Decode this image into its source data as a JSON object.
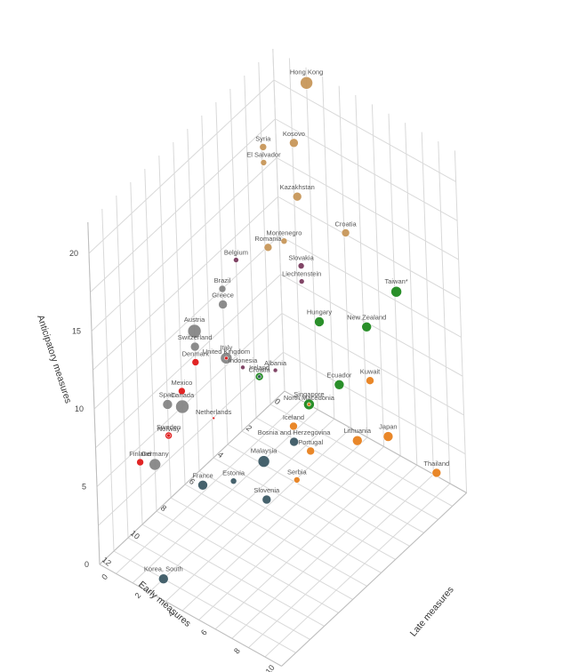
{
  "chart_data": {
    "type": "scatter",
    "title": "",
    "x_axis": {
      "label": "Late measures",
      "ticks": [
        "0",
        "2",
        "4",
        "6",
        "8",
        "10"
      ],
      "range": [
        0,
        11
      ]
    },
    "y_axis": {
      "label": "Early measures",
      "ticks": [
        "0",
        "2",
        "4",
        "6",
        "8",
        "10",
        "12"
      ],
      "range": [
        0,
        13
      ]
    },
    "z_axis": {
      "label": "Anticipatory measures",
      "ticks": [
        "0",
        "5",
        "10",
        "15",
        "20"
      ],
      "range": [
        0,
        22
      ]
    },
    "grid": true,
    "legend": "none",
    "colors": {
      "tan": "#c8975a",
      "purple": "#7b3c5e",
      "green": "#1f8a1f",
      "gray": "#868686",
      "red": "#e01a1a",
      "teal": "#3d5a66",
      "orange": "#e8811e"
    },
    "points": [
      {
        "name": "Hong Kong",
        "x": 2,
        "y": 0,
        "z": 21,
        "size": 14,
        "color": "tan"
      },
      {
        "name": "Kosovo",
        "x": 2,
        "y": 1,
        "z": 18,
        "size": 10,
        "color": "tan"
      },
      {
        "name": "Syria",
        "x": 1,
        "y": 2,
        "z": 18,
        "size": 8,
        "color": "tan"
      },
      {
        "name": "El Salvador",
        "x": 1,
        "y": 2,
        "z": 17,
        "size": 7,
        "color": "tan"
      },
      {
        "name": "Kazakhstan",
        "x": 3,
        "y": 2,
        "z": 16,
        "size": 10,
        "color": "tan"
      },
      {
        "name": "Montenegro",
        "x": 3,
        "y": 3,
        "z": 14,
        "size": 7,
        "color": "tan"
      },
      {
        "name": "Croatia",
        "x": 5,
        "y": 1,
        "z": 14,
        "size": 9,
        "color": "tan"
      },
      {
        "name": "Romania",
        "x": 2,
        "y": 3,
        "z": 13,
        "size": 9,
        "color": "tan"
      },
      {
        "name": "Slovakia",
        "x": 4,
        "y": 3,
        "z": 13,
        "size": 7,
        "color": "purple"
      },
      {
        "name": "Liechtenstein",
        "x": 4,
        "y": 3,
        "z": 12,
        "size": 6,
        "color": "purple"
      },
      {
        "name": "Belgium",
        "x": 0,
        "y": 3,
        "z": 11,
        "size": 6,
        "color": "purple"
      },
      {
        "name": "Albania",
        "x": 4,
        "y": 5,
        "z": 8,
        "size": 5,
        "color": "purple"
      },
      {
        "name": "Indonesia",
        "x": 2,
        "y": 5,
        "z": 7,
        "size": 5,
        "color": "purple"
      },
      {
        "name": "Taiwan*",
        "x": 8,
        "y": 1,
        "z": 12,
        "size": 12,
        "color": "green"
      },
      {
        "name": "Hungary",
        "x": 5,
        "y": 3,
        "z": 10,
        "size": 11,
        "color": "green"
      },
      {
        "name": "New Zealand",
        "x": 7,
        "y": 2,
        "z": 10,
        "size": 11,
        "color": "green"
      },
      {
        "name": "Ecuador",
        "x": 7,
        "y": 4,
        "z": 8,
        "size": 11,
        "color": "green"
      },
      {
        "name": "Singapore",
        "x": 6,
        "y": 5,
        "z": 7,
        "size": 12,
        "color": "green"
      },
      {
        "name": "Ireland",
        "x": 3,
        "y": 5,
        "z": 7,
        "size": 9,
        "color": "green"
      },
      {
        "name": "Austria",
        "x": 0,
        "y": 6,
        "z": 9,
        "size": 15,
        "color": "gray"
      },
      {
        "name": "Brazil",
        "x": 0,
        "y": 4,
        "z": 10,
        "size": 8,
        "color": "gray"
      },
      {
        "name": "Greece",
        "x": 0,
        "y": 4,
        "z": 9,
        "size": 10,
        "color": "gray"
      },
      {
        "name": "Switzerland",
        "x": 0,
        "y": 6,
        "z": 8,
        "size": 10,
        "color": "gray"
      },
      {
        "name": "Italy",
        "x": 1,
        "y": 5,
        "z": 7,
        "size": 13,
        "color": "gray"
      },
      {
        "name": "Spain",
        "x": 0,
        "y": 8,
        "z": 6,
        "size": 11,
        "color": "gray"
      },
      {
        "name": "Canada",
        "x": 0,
        "y": 7,
        "z": 5,
        "size": 15,
        "color": "gray"
      },
      {
        "name": "Germany",
        "x": 0,
        "y": 9,
        "z": 3,
        "size": 13,
        "color": "gray"
      },
      {
        "name": "Denmark",
        "x": 0,
        "y": 6,
        "z": 7,
        "size": 8,
        "color": "red"
      },
      {
        "name": "United Kingdom",
        "x": 1,
        "y": 5,
        "z": 7,
        "size": 4,
        "color": "red"
      },
      {
        "name": "Mexico",
        "x": 0,
        "y": 7,
        "z": 6,
        "size": 8,
        "color": "red"
      },
      {
        "name": "Finland",
        "x": 0,
        "y": 10,
        "z": 4,
        "size": 8,
        "color": "red"
      },
      {
        "name": "Sweden",
        "x": 0,
        "y": 8,
        "z": 4,
        "size": 8,
        "color": "red"
      },
      {
        "name": "Norway",
        "x": 0,
        "y": 8,
        "z": 4,
        "size": 4,
        "color": "red"
      },
      {
        "name": "Netherlands",
        "x": 1,
        "y": 6,
        "z": 4,
        "size": 3,
        "color": "red"
      },
      {
        "name": "Malaysia",
        "x": 4,
        "y": 6,
        "z": 3,
        "size": 13,
        "color": "teal"
      },
      {
        "name": "Croatia",
        "x": 3,
        "y": 5,
        "z": 7,
        "size": 4,
        "color": "teal"
      },
      {
        "name": "France",
        "x": 2,
        "y": 8,
        "z": 2,
        "size": 11,
        "color": "teal"
      },
      {
        "name": "Estonia",
        "x": 3,
        "y": 7,
        "z": 2,
        "size": 7,
        "color": "teal"
      },
      {
        "name": "Slovenia",
        "x": 5,
        "y": 7,
        "z": 2,
        "size": 10,
        "color": "teal"
      },
      {
        "name": "Korea, South",
        "x": 3,
        "y": 12,
        "z": 0,
        "size": 11,
        "color": "teal"
      },
      {
        "name": "Bosnia and Herzegovina",
        "x": 5,
        "y": 5,
        "z": 4,
        "size": 10,
        "color": "teal"
      },
      {
        "name": "Kuwait",
        "x": 8,
        "y": 3,
        "z": 8,
        "size": 9,
        "color": "orange"
      },
      {
        "name": "North Macedonia",
        "x": 6,
        "y": 5,
        "z": 7,
        "size": 4,
        "color": "orange"
      },
      {
        "name": "Lithuania",
        "x": 8,
        "y": 4,
        "z": 5,
        "size": 11,
        "color": "orange"
      },
      {
        "name": "Japan",
        "x": 9,
        "y": 3,
        "z": 5,
        "size": 11,
        "color": "orange"
      },
      {
        "name": "Serbia",
        "x": 6,
        "y": 6,
        "z": 3,
        "size": 7,
        "color": "orange"
      },
      {
        "name": "Portugal",
        "x": 6,
        "y": 5,
        "z": 4,
        "size": 9,
        "color": "orange"
      },
      {
        "name": "Iceland",
        "x": 5,
        "y": 5,
        "z": 5,
        "size": 9,
        "color": "orange"
      },
      {
        "name": "Thailand",
        "x": 11,
        "y": 2,
        "z": 3,
        "size": 10,
        "color": "orange"
      }
    ]
  }
}
